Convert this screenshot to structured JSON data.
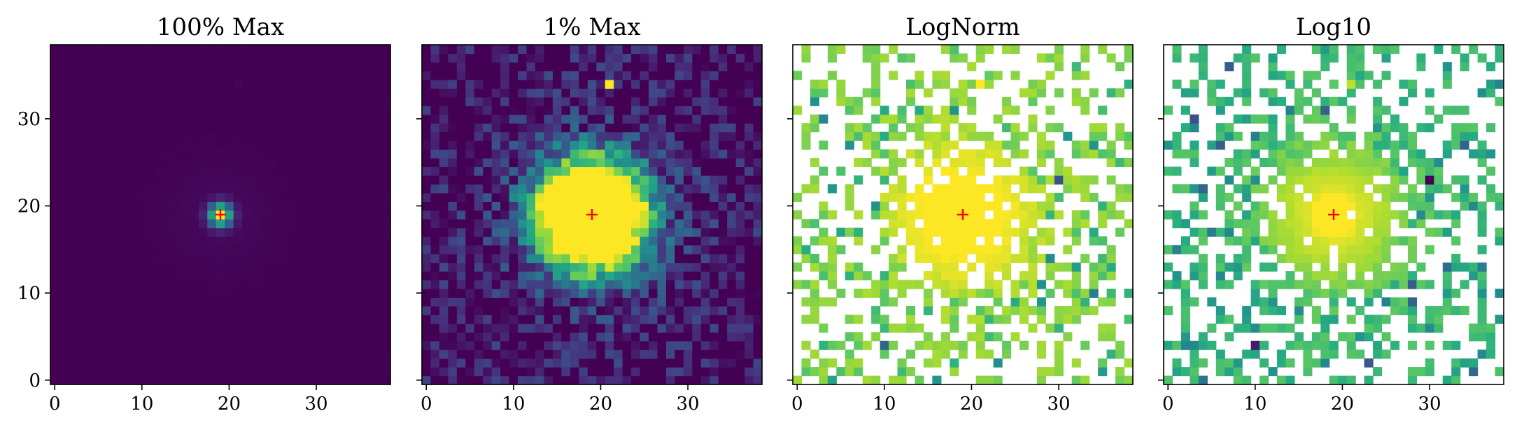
{
  "chart_data": [
    {
      "type": "heatmap",
      "title": "100% Max",
      "norm": "linear",
      "vmax_fraction": 1.0,
      "colormap": "viridis",
      "grid_size": [
        39,
        39
      ],
      "xlim": [
        -0.5,
        38.5
      ],
      "ylim": [
        -0.5,
        38.5
      ],
      "xticks": [
        0,
        10,
        20,
        30
      ],
      "yticks": [
        0,
        10,
        20,
        30
      ],
      "show_yticklabels": true,
      "source_center": [
        19,
        19
      ],
      "marker": {
        "symbol": "+",
        "x": 19,
        "y": 19,
        "color": "#ff0000"
      },
      "secondary_source": [
        21,
        34
      ],
      "masked_fraction": 0.0
    },
    {
      "type": "heatmap",
      "title": "1% Max",
      "norm": "linear",
      "vmax_fraction": 0.01,
      "colormap": "viridis",
      "grid_size": [
        39,
        39
      ],
      "xlim": [
        -0.5,
        38.5
      ],
      "ylim": [
        -0.5,
        38.5
      ],
      "xticks": [
        0,
        10,
        20,
        30
      ],
      "yticks": [
        0,
        10,
        20,
        30
      ],
      "show_yticklabels": false,
      "source_center": [
        19,
        19
      ],
      "marker": {
        "symbol": "+",
        "x": 19,
        "y": 19,
        "color": "#ff0000"
      },
      "secondary_source": [
        21,
        34
      ],
      "masked_fraction": 0.0
    },
    {
      "type": "heatmap",
      "title": "LogNorm",
      "norm": "log",
      "colormap": "viridis",
      "grid_size": [
        39,
        39
      ],
      "xlim": [
        -0.5,
        38.5
      ],
      "ylim": [
        -0.5,
        38.5
      ],
      "xticks": [
        0,
        10,
        20,
        30
      ],
      "yticks": [
        0,
        10,
        20,
        30
      ],
      "show_yticklabels": false,
      "source_center": [
        19,
        19
      ],
      "marker": {
        "symbol": "+",
        "x": 19,
        "y": 19,
        "color": "#ff0000"
      },
      "secondary_source": [
        21,
        34
      ],
      "masked_fraction": 0.3
    },
    {
      "type": "heatmap",
      "title": "Log10",
      "norm": "log10",
      "colormap": "viridis",
      "grid_size": [
        39,
        39
      ],
      "xlim": [
        -0.5,
        38.5
      ],
      "ylim": [
        -0.5,
        38.5
      ],
      "xticks": [
        0,
        10,
        20,
        30
      ],
      "yticks": [
        0,
        10,
        20,
        30
      ],
      "show_yticklabels": false,
      "source_center": [
        19,
        19
      ],
      "marker": {
        "symbol": "+",
        "x": 19,
        "y": 19,
        "color": "#ff0000"
      },
      "secondary_source": [
        21,
        34
      ],
      "masked_fraction": 0.3
    }
  ]
}
